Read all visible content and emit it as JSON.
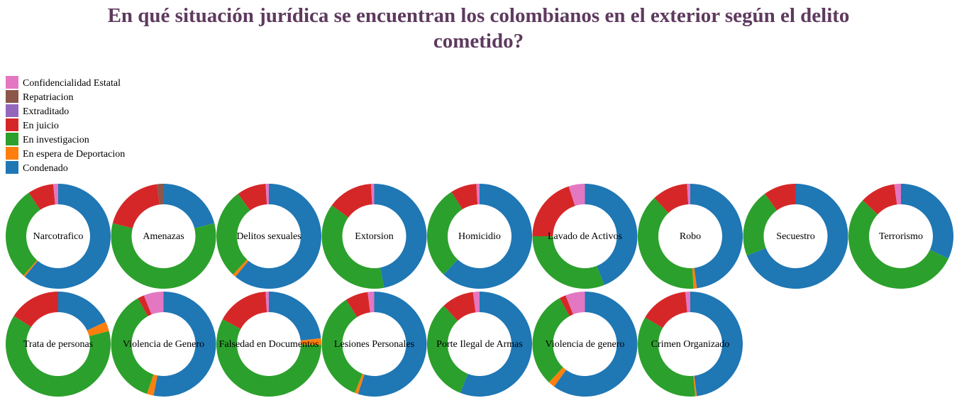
{
  "title_lines": [
    "En qué situación jurídica se encuentran los colombianos en el exterior según el delito",
    "cometido?"
  ],
  "chart_data": {
    "type": "pie",
    "variant": "donut-small-multiples",
    "title": "En qué situación jurídica se encuentran los colombianos en el exterior según el delito cometido?",
    "legend_placement": "top-left",
    "statuses": [
      {
        "name": "Confidencialidad Estatal",
        "color": "#e377c2"
      },
      {
        "name": "Repatriacion",
        "color": "#8c564b"
      },
      {
        "name": "Extraditado",
        "color": "#9467bd"
      },
      {
        "name": "En juicio",
        "color": "#d62728"
      },
      {
        "name": "En investigacion",
        "color": "#2ca02c"
      },
      {
        "name": "En espera de Deportacion",
        "color": "#ff7f0e"
      },
      {
        "name": "Condenado",
        "color": "#1f77b4"
      }
    ],
    "slice_order": [
      "Condenado",
      "En espera de Deportacion",
      "En investigacion",
      "Extraditado",
      "En juicio",
      "Repatriacion",
      "Confidencialidad Estatal"
    ],
    "unit": "percent share",
    "crimes": [
      {
        "name": "Narcotrafico",
        "shares": {
          "Condenado": 61,
          "En espera de Deportacion": 0.5,
          "En investigacion": 29,
          "En juicio": 8,
          "Confidencialidad Estatal": 1.5
        }
      },
      {
        "name": "Amenazas",
        "shares": {
          "Condenado": 21,
          "En investigacion": 58,
          "En juicio": 19,
          "Repatriacion": 2
        }
      },
      {
        "name": "Delitos sexuales",
        "shares": {
          "Condenado": 61,
          "En espera de Deportacion": 1,
          "En investigacion": 28,
          "En juicio": 9,
          "Confidencialidad Estatal": 1
        }
      },
      {
        "name": "Extorsion",
        "shares": {
          "Condenado": 47,
          "En investigacion": 38,
          "En juicio": 14,
          "Confidencialidad Estatal": 1
        }
      },
      {
        "name": "Homicidio",
        "shares": {
          "Condenado": 62,
          "En investigacion": 29,
          "En juicio": 8,
          "Confidencialidad Estatal": 1
        }
      },
      {
        "name": "Lavado de Activos",
        "shares": {
          "Condenado": 44,
          "En investigacion": 31,
          "En juicio": 20,
          "Confidencialidad Estatal": 5
        }
      },
      {
        "name": "Robo",
        "shares": {
          "Condenado": 48,
          "En espera de Deportacion": 1,
          "En investigacion": 39,
          "En juicio": 11,
          "Confidencialidad Estatal": 1
        }
      },
      {
        "name": "Secuestro",
        "shares": {
          "Condenado": 69,
          "En investigacion": 21,
          "En juicio": 10
        }
      },
      {
        "name": "Terrorismo",
        "shares": {
          "Condenado": 32,
          "En investigacion": 55,
          "En juicio": 11,
          "Confidencialidad Estatal": 2
        }
      },
      {
        "name": "Trata de personas",
        "shares": {
          "Condenado": 18,
          "En espera de Deportacion": 3,
          "En investigacion": 63,
          "En juicio": 16
        }
      },
      {
        "name": "Violencia de Genero",
        "shares": {
          "Condenado": 52,
          "En espera de Deportacion": 2,
          "En investigacion": 36,
          "En juicio": 2,
          "Confidencialidad Estatal": 6
        }
      },
      {
        "name": "Falsedad en Documentos",
        "shares": {
          "Condenado": 23,
          "En espera de Deportacion": 2,
          "En investigacion": 57,
          "En juicio": 16,
          "Confidencialidad Estatal": 1
        }
      },
      {
        "name": "Lesiones Personales",
        "shares": {
          "Condenado": 55,
          "En espera de Deportacion": 1,
          "En investigacion": 35,
          "En juicio": 7,
          "Confidencialidad Estatal": 2
        }
      },
      {
        "name": "Porte Ilegal de Armas",
        "shares": {
          "Condenado": 56,
          "En investigacion": 32,
          "En juicio": 10,
          "Confidencialidad Estatal": 2
        }
      },
      {
        "name": "Violencia de genero",
        "shares": {
          "Condenado": 60,
          "En espera de Deportacion": 2,
          "En investigacion": 30,
          "En juicio": 2,
          "Confidencialidad Estatal": 6
        }
      },
      {
        "name": "Crimen Organizado",
        "shares": {
          "Condenado": 48,
          "En espera de Deportacion": 0.5,
          "En investigacion": 35,
          "En juicio": 15,
          "Confidencialidad Estatal": 1.5
        }
      }
    ]
  }
}
